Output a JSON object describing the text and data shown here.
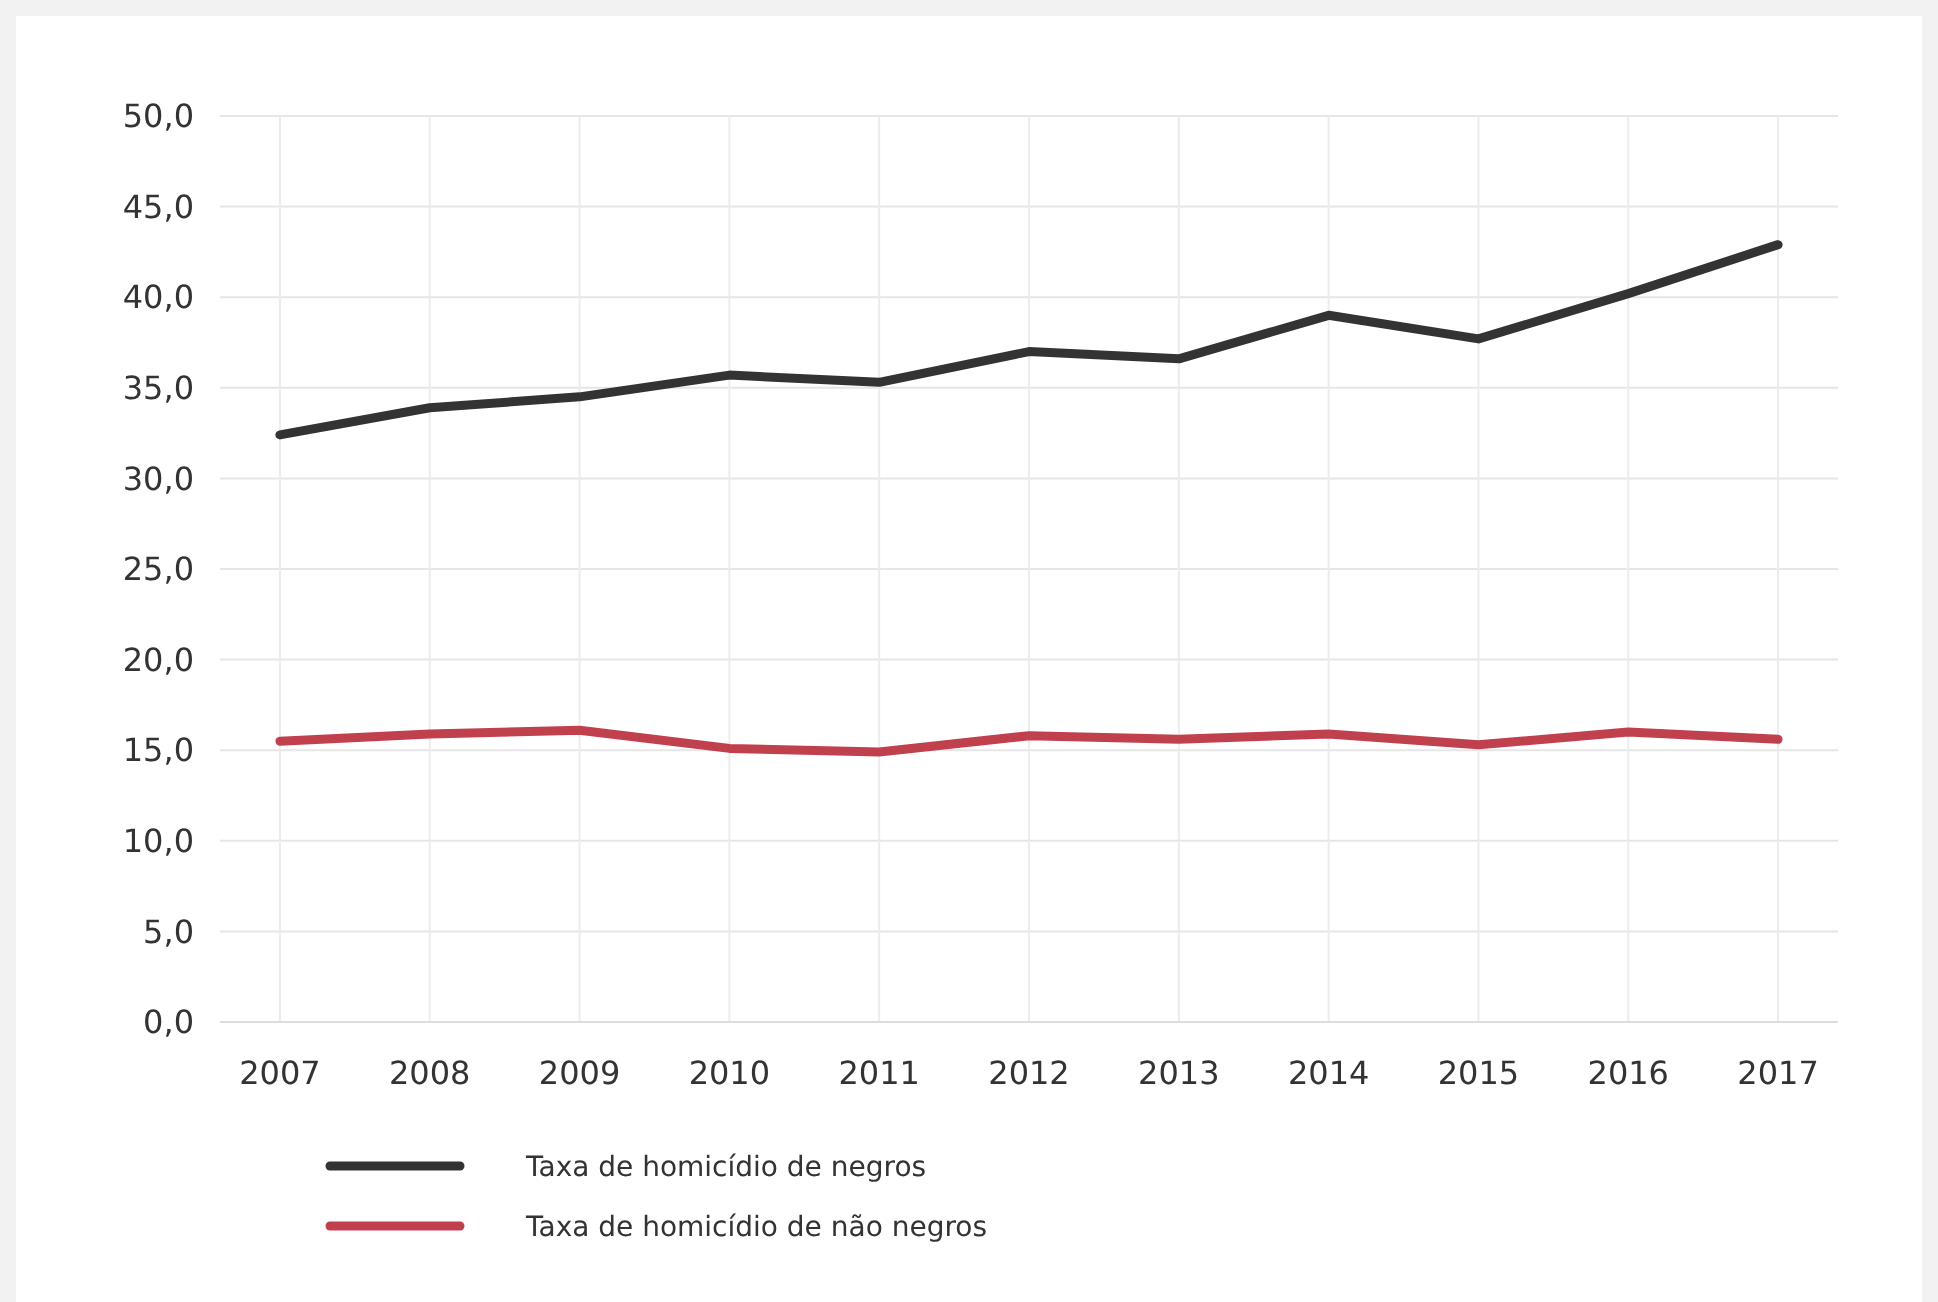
{
  "chart_data": {
    "type": "line",
    "categories": [
      "2007",
      "2008",
      "2009",
      "2010",
      "2011",
      "2012",
      "2013",
      "2014",
      "2015",
      "2016",
      "2017"
    ],
    "series": [
      {
        "name": "Taxa de homicídio de negros",
        "color": "#333333",
        "values": [
          32.4,
          33.9,
          34.5,
          35.7,
          35.3,
          37.0,
          36.6,
          39.0,
          37.7,
          40.2,
          42.9
        ]
      },
      {
        "name": "Taxa de homicídio de não negros",
        "color": "#c1404e",
        "values": [
          15.5,
          15.9,
          16.1,
          15.1,
          14.9,
          15.8,
          15.6,
          15.9,
          15.3,
          16.0,
          15.6
        ]
      }
    ],
    "ylim": [
      0,
      50
    ],
    "yticks": [
      {
        "value": 0,
        "label": "0,0"
      },
      {
        "value": 5,
        "label": "5,0"
      },
      {
        "value": 10,
        "label": "10,0"
      },
      {
        "value": 15,
        "label": "15,0"
      },
      {
        "value": 20,
        "label": "20,0"
      },
      {
        "value": 25,
        "label": "25,0"
      },
      {
        "value": 30,
        "label": "30,0"
      },
      {
        "value": 35,
        "label": "35,0"
      },
      {
        "value": 40,
        "label": "40,0"
      },
      {
        "value": 45,
        "label": "45,0"
      },
      {
        "value": 50,
        "label": "50,0"
      }
    ],
    "grid": true,
    "legend": "bottom left",
    "line_style": "solid"
  }
}
